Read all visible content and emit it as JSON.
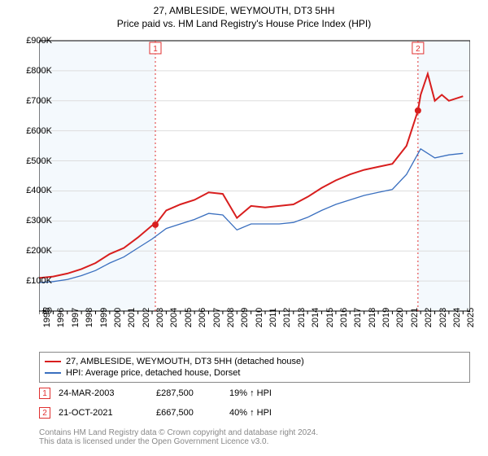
{
  "title_line1": "27, AMBLESIDE, WEYMOUTH, DT3 5HH",
  "title_line2": "Price paid vs. HM Land Registry's House Price Index (HPI)",
  "chart": {
    "type": "line",
    "background_color": "#ffffff",
    "plot_bg_left": "#f4f9fd",
    "plot_bg_right": "#f4f9fd",
    "grid_color": "#dddddd",
    "axis_color": "#000000",
    "x_years": [
      1995,
      1996,
      1997,
      1998,
      1999,
      2000,
      2001,
      2002,
      2003,
      2004,
      2005,
      2006,
      2007,
      2008,
      2009,
      2010,
      2011,
      2012,
      2013,
      2014,
      2015,
      2016,
      2017,
      2018,
      2019,
      2020,
      2021,
      2022,
      2023,
      2024,
      2025
    ],
    "xlim": [
      1995,
      2025.5
    ],
    "ylim": [
      0,
      900000
    ],
    "ytick_step": 100000,
    "ytick_labels": [
      "£0",
      "£100K",
      "£200K",
      "£300K",
      "£400K",
      "£500K",
      "£600K",
      "£700K",
      "£800K",
      "£900K"
    ],
    "marker_lines": [
      {
        "x": 2003.23,
        "color": "#e03030"
      },
      {
        "x": 2021.81,
        "color": "#e03030"
      }
    ],
    "marker_badges": [
      {
        "x": 2003.23,
        "label": "1",
        "border": "#e03030",
        "text": "#e03030"
      },
      {
        "x": 2021.81,
        "label": "2",
        "border": "#e03030",
        "text": "#e03030"
      }
    ],
    "series": [
      {
        "name": "27, AMBLESIDE, WEYMOUTH, DT3 5HH (detached house)",
        "color": "#d81e1e",
        "width": 2,
        "points_year": [
          1995,
          1996,
          1997,
          1998,
          1999,
          2000,
          2001,
          2002,
          2003,
          2003.23,
          2004,
          2005,
          2006,
          2007,
          2008,
          2009,
          2010,
          2011,
          2012,
          2013,
          2014,
          2015,
          2016,
          2017,
          2018,
          2019,
          2020,
          2021,
          2021.81,
          2022,
          2022.5,
          2023,
          2023.5,
          2024,
          2025
        ],
        "points_value": [
          110000,
          115000,
          125000,
          140000,
          160000,
          190000,
          210000,
          245000,
          285000,
          287500,
          335000,
          355000,
          370000,
          395000,
          390000,
          310000,
          350000,
          345000,
          350000,
          355000,
          380000,
          410000,
          435000,
          455000,
          470000,
          480000,
          490000,
          550000,
          667500,
          720000,
          790000,
          700000,
          720000,
          700000,
          715000
        ],
        "sale_markers": [
          {
            "x": 2003.23,
            "y": 287500
          },
          {
            "x": 2021.81,
            "y": 667500
          }
        ]
      },
      {
        "name": "HPI: Average price, detached house, Dorset",
        "color": "#3a6fbf",
        "width": 1.3,
        "points_year": [
          1995,
          1996,
          1997,
          1998,
          1999,
          2000,
          2001,
          2002,
          2003,
          2004,
          2005,
          2006,
          2007,
          2008,
          2009,
          2010,
          2011,
          2012,
          2013,
          2014,
          2015,
          2016,
          2017,
          2018,
          2019,
          2020,
          2021,
          2022,
          2023,
          2024,
          2025
        ],
        "points_value": [
          95000,
          98000,
          105000,
          118000,
          135000,
          160000,
          180000,
          210000,
          240000,
          275000,
          290000,
          305000,
          325000,
          320000,
          270000,
          290000,
          290000,
          290000,
          295000,
          312000,
          335000,
          355000,
          370000,
          385000,
          395000,
          405000,
          455000,
          540000,
          510000,
          520000,
          525000
        ]
      }
    ]
  },
  "legend": [
    {
      "color": "#d81e1e",
      "label": "27, AMBLESIDE, WEYMOUTH, DT3 5HH (detached house)"
    },
    {
      "color": "#3a6fbf",
      "label": "HPI: Average price, detached house, Dorset"
    }
  ],
  "sales": [
    {
      "badge": "1",
      "date": "24-MAR-2003",
      "price": "£287,500",
      "pct": "19% ↑ HPI"
    },
    {
      "badge": "2",
      "date": "21-OCT-2021",
      "price": "£667,500",
      "pct": "40% ↑ HPI"
    }
  ],
  "footer_line1": "Contains HM Land Registry data © Crown copyright and database right 2024.",
  "footer_line2": "This data is licensed under the Open Government Licence v3.0.",
  "colors": {
    "footer_text": "#888888",
    "badge_border": "#e03030",
    "badge_text": "#e03030"
  }
}
